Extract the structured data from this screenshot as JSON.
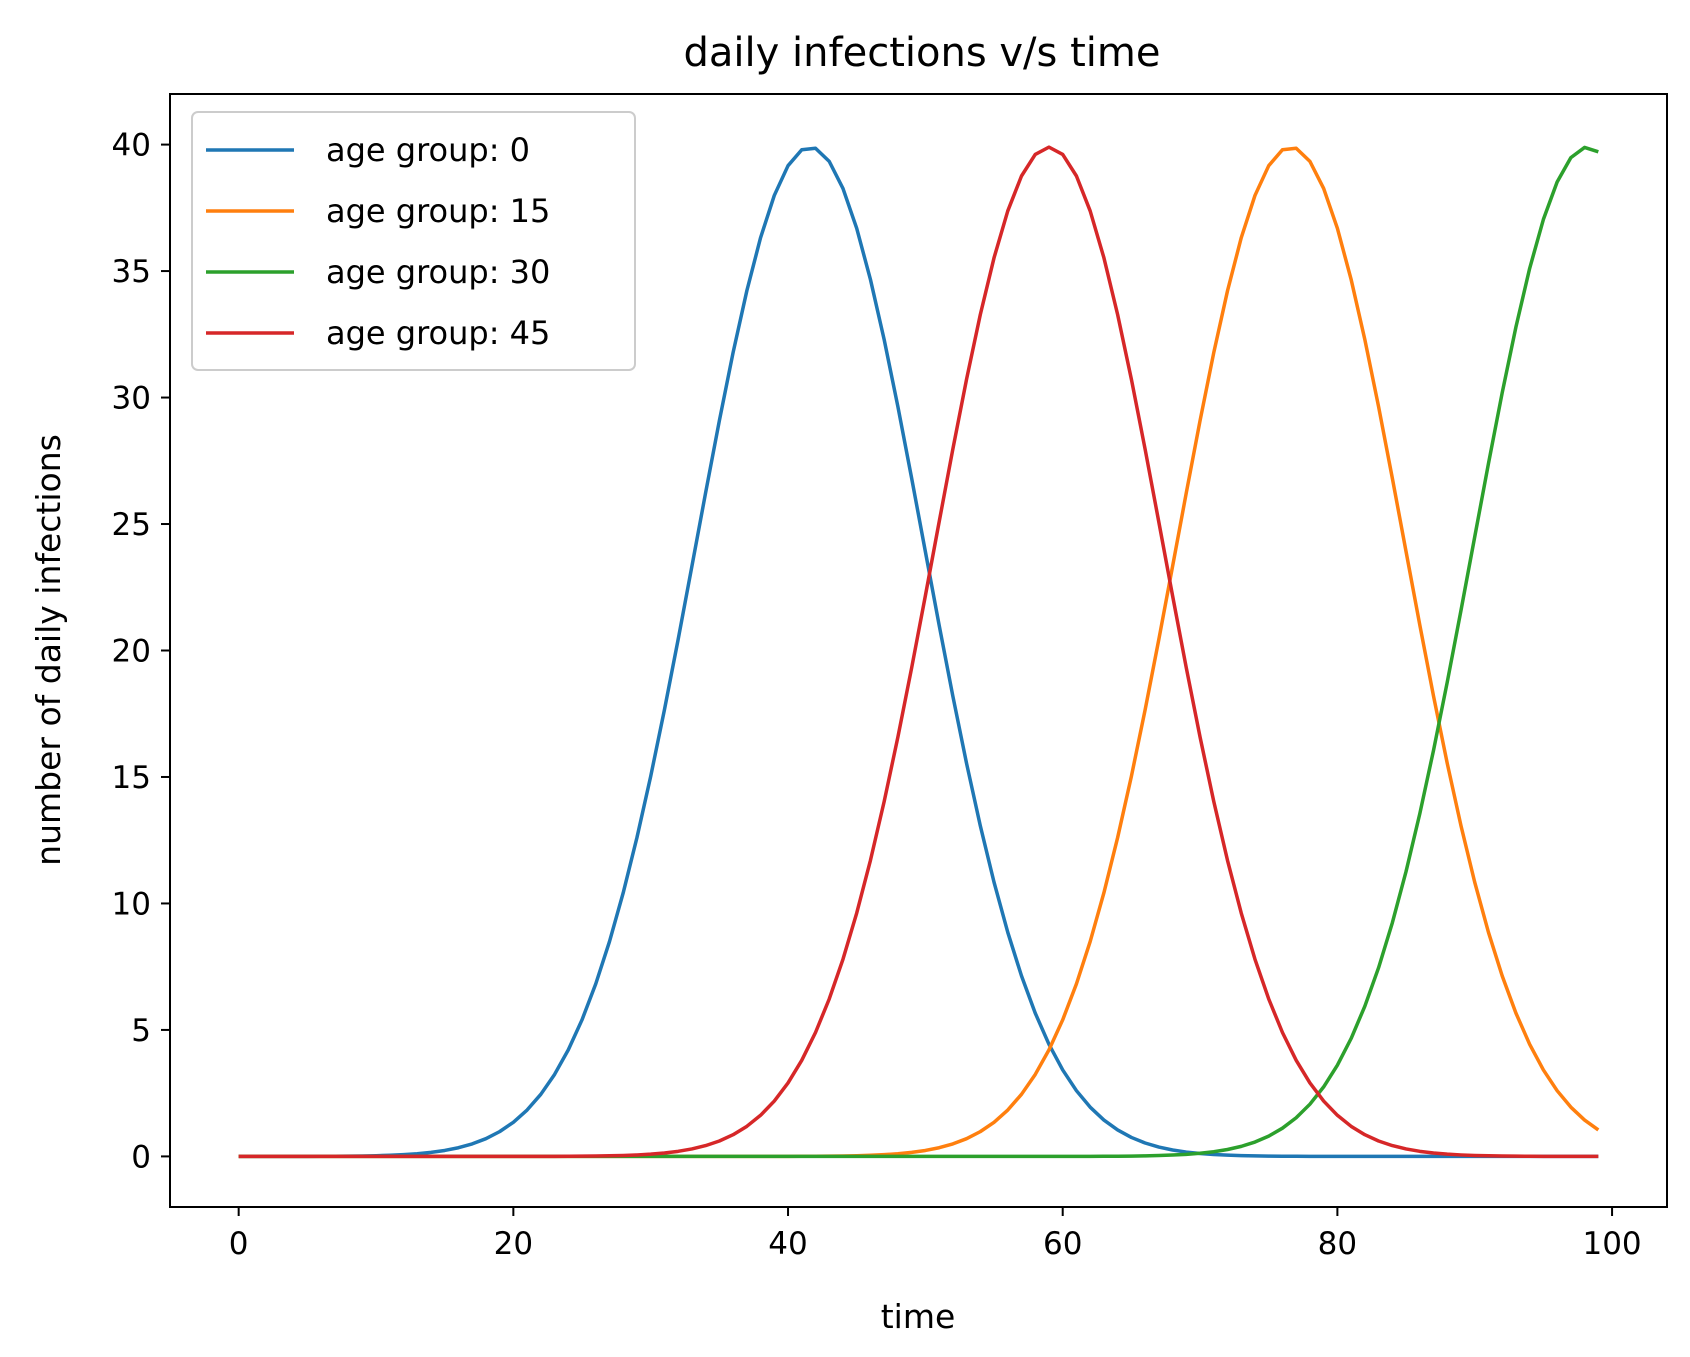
{
  "chart_data": {
    "type": "line",
    "title": "daily infections v/s time",
    "xlabel": "time",
    "ylabel": "number of daily infections",
    "xlim": [
      -5,
      104
    ],
    "ylim": [
      -2,
      42
    ],
    "xticks": [
      0,
      20,
      40,
      60,
      80,
      100
    ],
    "yticks": [
      0,
      5,
      10,
      15,
      20,
      25,
      30,
      35,
      40
    ],
    "grid": false,
    "legend_position": "top-left",
    "series": [
      {
        "name": "age group: 0",
        "color": "#1f77b4",
        "peak": 39.9,
        "center": 41.6,
        "width": 8.3,
        "x_start": 0,
        "x_end": 99
      },
      {
        "name": "age group: 15",
        "color": "#ff7f0e",
        "peak": 39.9,
        "center": 76.6,
        "width": 8.3,
        "x_start": 0,
        "x_end": 99
      },
      {
        "name": "age group: 30",
        "color": "#2ca02c",
        "peak": 39.9,
        "center": 98.2,
        "width": 8.3,
        "x_start": 0,
        "x_end": 99
      },
      {
        "name": "age group: 45",
        "color": "#d62728",
        "peak": 39.9,
        "center": 59.0,
        "width": 8.3,
        "x_start": 0,
        "x_end": 99
      }
    ]
  }
}
